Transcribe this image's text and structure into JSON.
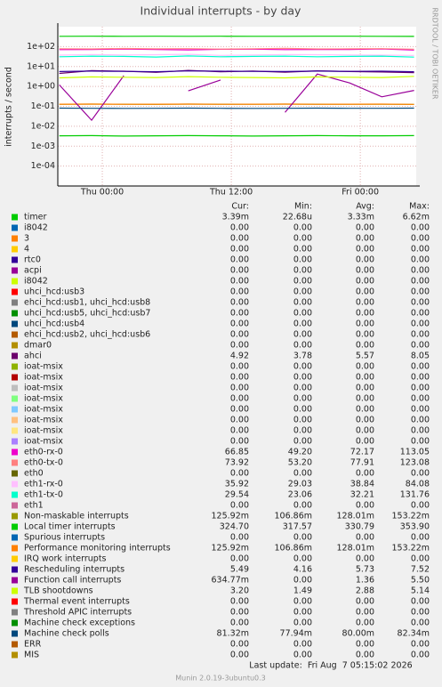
{
  "chart_data": {
    "type": "line",
    "title": "Individual interrupts - by day",
    "y_label": "interrupts / second",
    "log_scale": true,
    "grid": true,
    "x": [
      -4,
      -1,
      2,
      5,
      8,
      11,
      14,
      17,
      20,
      23,
      26,
      29
    ],
    "xlim": [
      -4.14,
      29.2
    ],
    "xticks": [
      {
        "value": 0,
        "label": "Thu 00:00"
      },
      {
        "value": 12,
        "label": "Thu 12:00"
      },
      {
        "value": 24,
        "label": "Fri 00:00"
      }
    ],
    "ylim": [
      1e-05,
      1000
    ],
    "yticks": [
      {
        "value": 0.0001,
        "label": "1e-04"
      },
      {
        "value": 0.001,
        "label": "1e-03"
      },
      {
        "value": 0.01,
        "label": "1e-02"
      },
      {
        "value": 0.1,
        "label": "1e-01"
      },
      {
        "value": 1,
        "label": "1e+00"
      },
      {
        "value": 10,
        "label": "1e+01"
      },
      {
        "value": 100,
        "label": "1e+02"
      }
    ],
    "legend_columns": [
      "Cur:",
      "Min:",
      "Avg:",
      "Max:"
    ],
    "series": [
      {
        "name": "timer",
        "color": "#00cc00",
        "cur": "3.39m",
        "min": "22.68u",
        "avg": "3.33m",
        "max": "6.62m",
        "values": [
          0.0033,
          0.0034,
          0.0032,
          0.0033,
          0.0034,
          0.0033,
          0.0032,
          0.0033,
          0.0034,
          0.0033,
          0.0033,
          0.0034
        ]
      },
      {
        "name": "i8042",
        "color": "#0066b3",
        "cur": "0.00",
        "min": "0.00",
        "avg": "0.00",
        "max": "0.00"
      },
      {
        "name": "3",
        "color": "#ff8000",
        "cur": "0.00",
        "min": "0.00",
        "avg": "0.00",
        "max": "0.00"
      },
      {
        "name": "4",
        "color": "#ffcc00",
        "cur": "0.00",
        "min": "0.00",
        "avg": "0.00",
        "max": "0.00"
      },
      {
        "name": "rtc0",
        "color": "#330099",
        "cur": "0.00",
        "min": "0.00",
        "avg": "0.00",
        "max": "0.00"
      },
      {
        "name": "acpi",
        "color": "#990099",
        "cur": "0.00",
        "min": "0.00",
        "avg": "0.00",
        "max": "0.00"
      },
      {
        "name": "i8042",
        "color": "#ccff00",
        "cur": "0.00",
        "min": "0.00",
        "avg": "0.00",
        "max": "0.00"
      },
      {
        "name": "uhci_hcd:usb3",
        "color": "#ff0000",
        "cur": "0.00",
        "min": "0.00",
        "avg": "0.00",
        "max": "0.00"
      },
      {
        "name": "ehci_hcd:usb1, uhci_hcd:usb8",
        "color": "#808080",
        "cur": "0.00",
        "min": "0.00",
        "avg": "0.00",
        "max": "0.00"
      },
      {
        "name": "uhci_hcd:usb5, uhci_hcd:usb7",
        "color": "#008f00",
        "cur": "0.00",
        "min": "0.00",
        "avg": "0.00",
        "max": "0.00"
      },
      {
        "name": "uhci_hcd:usb4",
        "color": "#00487d",
        "cur": "0.00",
        "min": "0.00",
        "avg": "0.00",
        "max": "0.00"
      },
      {
        "name": "ehci_hcd:usb2, uhci_hcd:usb6",
        "color": "#b35a00",
        "cur": "0.00",
        "min": "0.00",
        "avg": "0.00",
        "max": "0.00"
      },
      {
        "name": "dmar0",
        "color": "#b38f00",
        "cur": "0.00",
        "min": "0.00",
        "avg": "0.00",
        "max": "0.00"
      },
      {
        "name": "ahci",
        "color": "#6b006b",
        "cur": "4.92",
        "min": "3.78",
        "avg": "5.57",
        "max": "8.05",
        "values": [
          4.5,
          6.2,
          5.8,
          5.1,
          6.4,
          5.5,
          5.9,
          5.2,
          6.1,
          5.6,
          5.3,
          4.92
        ]
      },
      {
        "name": "ioat-msix",
        "color": "#8fb300",
        "cur": "0.00",
        "min": "0.00",
        "avg": "0.00",
        "max": "0.00"
      },
      {
        "name": "ioat-msix",
        "color": "#b30000",
        "cur": "0.00",
        "min": "0.00",
        "avg": "0.00",
        "max": "0.00"
      },
      {
        "name": "ioat-msix",
        "color": "#bebebe",
        "cur": "0.00",
        "min": "0.00",
        "avg": "0.00",
        "max": "0.00"
      },
      {
        "name": "ioat-msix",
        "color": "#80ff80",
        "cur": "0.00",
        "min": "0.00",
        "avg": "0.00",
        "max": "0.00"
      },
      {
        "name": "ioat-msix",
        "color": "#80c9ff",
        "cur": "0.00",
        "min": "0.00",
        "avg": "0.00",
        "max": "0.00"
      },
      {
        "name": "ioat-msix",
        "color": "#ffc080",
        "cur": "0.00",
        "min": "0.00",
        "avg": "0.00",
        "max": "0.00"
      },
      {
        "name": "ioat-msix",
        "color": "#ffe680",
        "cur": "0.00",
        "min": "0.00",
        "avg": "0.00",
        "max": "0.00"
      },
      {
        "name": "ioat-msix",
        "color": "#aa80ff",
        "cur": "0.00",
        "min": "0.00",
        "avg": "0.00",
        "max": "0.00"
      },
      {
        "name": "eth0-rx-0",
        "color": "#ee00cc",
        "cur": "66.85",
        "min": "49.20",
        "avg": "72.17",
        "max": "113.05",
        "values": [
          70,
          72,
          75,
          71,
          68,
          73,
          74,
          70,
          72,
          71,
          76,
          66.85
        ]
      },
      {
        "name": "eth0-tx-0",
        "color": "#ff8080",
        "cur": "73.92",
        "min": "53.20",
        "avg": "77.91",
        "max": "123.08",
        "values": [
          78,
          76,
          80,
          77,
          79,
          75,
          78,
          81,
          76,
          77,
          79,
          73.92
        ]
      },
      {
        "name": "eth0",
        "color": "#666600",
        "cur": "0.00",
        "min": "0.00",
        "avg": "0.00",
        "max": "0.00"
      },
      {
        "name": "eth1-rx-0",
        "color": "#ffbfff",
        "cur": "35.92",
        "min": "29.03",
        "avg": "38.84",
        "max": "84.08",
        "values": [
          37,
          40,
          38,
          39,
          41,
          36,
          38,
          40,
          39,
          38,
          37,
          35.92
        ]
      },
      {
        "name": "eth1-tx-0",
        "color": "#00ffcc",
        "cur": "29.54",
        "min": "23.06",
        "avg": "32.21",
        "max": "131.76",
        "values": [
          31,
          33,
          32,
          30,
          34,
          31,
          32,
          33,
          31,
          32,
          33,
          29.54
        ]
      },
      {
        "name": "eth1",
        "color": "#cc6699",
        "cur": "0.00",
        "min": "0.00",
        "avg": "0.00",
        "max": "0.00"
      },
      {
        "name": "Non-maskable interrupts",
        "color": "#999900",
        "cur": "125.92m",
        "min": "106.86m",
        "avg": "128.01m",
        "max": "153.22m",
        "values": [
          0.127,
          0.129,
          0.128,
          0.126,
          0.13,
          0.128,
          0.127,
          0.129,
          0.128,
          0.127,
          0.128,
          0.126
        ]
      },
      {
        "name": "Local timer interrupts",
        "color": "#00cc00",
        "cur": "324.70",
        "min": "317.57",
        "avg": "330.79",
        "max": "353.90",
        "values": [
          329,
          332,
          330,
          331,
          328,
          333,
          330,
          329,
          332,
          331,
          330,
          324.7
        ]
      },
      {
        "name": "Spurious interrupts",
        "color": "#0066b3",
        "cur": "0.00",
        "min": "0.00",
        "avg": "0.00",
        "max": "0.00"
      },
      {
        "name": "Performance monitoring interrupts",
        "color": "#ff8000",
        "cur": "125.92m",
        "min": "106.86m",
        "avg": "128.01m",
        "max": "153.22m",
        "values": [
          0.128,
          0.13,
          0.127,
          0.128,
          0.129,
          0.127,
          0.128,
          0.13,
          0.127,
          0.128,
          0.129,
          0.126
        ]
      },
      {
        "name": "IRQ work interrupts",
        "color": "#ffcc00",
        "cur": "0.00",
        "min": "0.00",
        "avg": "0.00",
        "max": "0.00"
      },
      {
        "name": "Rescheduling interrupts",
        "color": "#330099",
        "cur": "5.49",
        "min": "4.16",
        "avg": "5.73",
        "max": "7.52",
        "values": [
          5.6,
          5.9,
          5.7,
          5.5,
          6.0,
          5.8,
          5.7,
          5.6,
          5.9,
          5.7,
          5.8,
          5.49
        ]
      },
      {
        "name": "Function call interrupts",
        "color": "#990099",
        "cur": "634.77m",
        "min": "0.00",
        "avg": "1.36",
        "max": "5.50",
        "values": [
          1.2,
          0.02,
          3.5,
          null,
          0.6,
          2.1,
          null,
          0.05,
          4.2,
          1.5,
          0.3,
          0.63
        ]
      },
      {
        "name": "TLB shootdowns",
        "color": "#ccff00",
        "cur": "3.20",
        "min": "1.49",
        "avg": "2.88",
        "max": "5.14",
        "values": [
          2.7,
          3.0,
          2.9,
          2.8,
          3.1,
          2.9,
          2.8,
          2.7,
          3.0,
          2.9,
          2.8,
          3.2
        ]
      },
      {
        "name": "Thermal event interrupts",
        "color": "#ff0000",
        "cur": "0.00",
        "min": "0.00",
        "avg": "0.00",
        "max": "0.00"
      },
      {
        "name": "Threshold APIC interrupts",
        "color": "#808080",
        "cur": "0.00",
        "min": "0.00",
        "avg": "0.00",
        "max": "0.00"
      },
      {
        "name": "Machine check exceptions",
        "color": "#008f00",
        "cur": "0.00",
        "min": "0.00",
        "avg": "0.00",
        "max": "0.00"
      },
      {
        "name": "Machine check polls",
        "color": "#00487d",
        "cur": "81.32m",
        "min": "77.94m",
        "avg": "80.00m",
        "max": "82.34m",
        "values": [
          0.081,
          0.08,
          0.079,
          0.08,
          0.081,
          0.08,
          0.079,
          0.08,
          0.081,
          0.08,
          0.08,
          0.0813
        ]
      },
      {
        "name": "ERR",
        "color": "#b35a00",
        "cur": "0.00",
        "min": "0.00",
        "avg": "0.00",
        "max": "0.00"
      },
      {
        "name": "MIS",
        "color": "#b38f00",
        "cur": "0.00",
        "min": "0.00",
        "avg": "0.00",
        "max": "0.00"
      }
    ],
    "last_update": "Last update:  Fri Aug  7 05:15:02 2026",
    "version": "Munin 2.0.19-3ubuntu0.3",
    "watermark": "RRDTOOL / TOBI OETIKER"
  }
}
